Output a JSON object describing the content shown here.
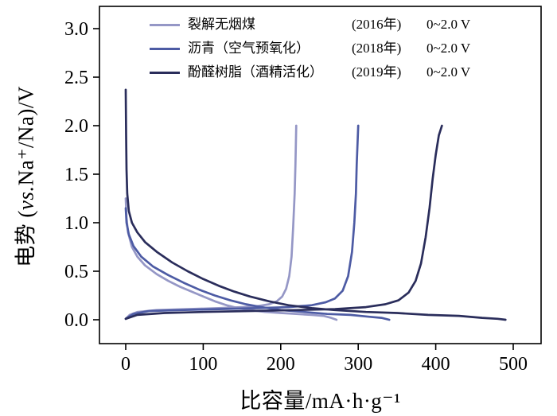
{
  "axes": {
    "x": {
      "label": "比容量/mA·h·g⁻¹",
      "min": 0,
      "max": 500,
      "ticks": [
        0,
        100,
        200,
        300,
        400,
        500
      ],
      "tick_labels": [
        "0",
        "100",
        "200",
        "300",
        "400",
        "500"
      ]
    },
    "y": {
      "label_prefix": "电势 (",
      "label_italic": "vs.",
      "label_suffix": "Na⁺/Na)/V",
      "min": 0,
      "max": 3,
      "ticks": [
        0,
        0.5,
        1,
        1.5,
        2,
        2.5,
        3
      ],
      "tick_labels": [
        "0.0",
        "0.5",
        "1.0",
        "1.5",
        "2.0",
        "2.5",
        "3.0"
      ]
    }
  },
  "chart_data": {
    "type": "line",
    "title": "",
    "xlabel": "比容量/mA·h·g⁻¹",
    "ylabel": "电势 (vs.Na⁺/Na)/V",
    "xlim": [
      0,
      500
    ],
    "ylim": [
      0,
      3.0
    ],
    "grid": false,
    "legend_position": "top-inside",
    "axis_color": "#000000",
    "series": [
      {
        "name": "裂解无烟煤",
        "year": "(2016年)",
        "voltage_range": "0~2.0 V",
        "color": "#9597c6",
        "curves": {
          "discharge": [
            [
              0,
              1.25
            ],
            [
              1,
              1.05
            ],
            [
              3,
              0.9
            ],
            [
              8,
              0.75
            ],
            [
              15,
              0.65
            ],
            [
              25,
              0.56
            ],
            [
              40,
              0.47
            ],
            [
              55,
              0.4
            ],
            [
              70,
              0.34
            ],
            [
              85,
              0.29
            ],
            [
              100,
              0.24
            ],
            [
              115,
              0.19
            ],
            [
              130,
              0.15
            ],
            [
              145,
              0.12
            ],
            [
              160,
              0.1
            ],
            [
              180,
              0.08
            ],
            [
              200,
              0.07
            ],
            [
              220,
              0.06
            ],
            [
              240,
              0.05
            ],
            [
              255,
              0.04
            ],
            [
              265,
              0.02
            ],
            [
              272,
              0.0
            ]
          ],
          "charge": [
            [
              0,
              0.01
            ],
            [
              5,
              0.05
            ],
            [
              15,
              0.08
            ],
            [
              40,
              0.1
            ],
            [
              80,
              0.11
            ],
            [
              120,
              0.12
            ],
            [
              150,
              0.13
            ],
            [
              170,
              0.14
            ],
            [
              185,
              0.16
            ],
            [
              195,
              0.19
            ],
            [
              202,
              0.24
            ],
            [
              207,
              0.32
            ],
            [
              211,
              0.45
            ],
            [
              214,
              0.65
            ],
            [
              216,
              0.95
            ],
            [
              218,
              1.3
            ],
            [
              219,
              1.6
            ],
            [
              220,
              2.0
            ]
          ]
        }
      },
      {
        "name": "沥青（空气预氧化）",
        "year": "(2018年)",
        "voltage_range": "0~2.0 V",
        "color": "#4d5ba4",
        "curves": {
          "discharge": [
            [
              0,
              1.15
            ],
            [
              1,
              1.0
            ],
            [
              4,
              0.88
            ],
            [
              10,
              0.76
            ],
            [
              20,
              0.65
            ],
            [
              35,
              0.55
            ],
            [
              55,
              0.46
            ],
            [
              75,
              0.38
            ],
            [
              95,
              0.31
            ],
            [
              115,
              0.25
            ],
            [
              135,
              0.2
            ],
            [
              155,
              0.16
            ],
            [
              175,
              0.13
            ],
            [
              200,
              0.1
            ],
            [
              230,
              0.08
            ],
            [
              260,
              0.06
            ],
            [
              290,
              0.05
            ],
            [
              315,
              0.03
            ],
            [
              330,
              0.02
            ],
            [
              340,
              0.0
            ]
          ],
          "charge": [
            [
              0,
              0.01
            ],
            [
              10,
              0.06
            ],
            [
              30,
              0.09
            ],
            [
              70,
              0.1
            ],
            [
              120,
              0.11
            ],
            [
              170,
              0.12
            ],
            [
              210,
              0.13
            ],
            [
              240,
              0.15
            ],
            [
              258,
              0.18
            ],
            [
              270,
              0.22
            ],
            [
              280,
              0.3
            ],
            [
              287,
              0.45
            ],
            [
              292,
              0.7
            ],
            [
              295,
              1.0
            ],
            [
              297,
              1.3
            ],
            [
              298,
              1.6
            ],
            [
              300,
              2.0
            ]
          ]
        }
      },
      {
        "name": "酚醛树脂（酒精活化）",
        "year": "(2019年)",
        "voltage_range": "0~2.0 V",
        "color": "#2a2d5b",
        "curves": {
          "discharge": [
            [
              0,
              2.37
            ],
            [
              0.5,
              1.9
            ],
            [
              1,
              1.55
            ],
            [
              2,
              1.3
            ],
            [
              4,
              1.12
            ],
            [
              8,
              1.0
            ],
            [
              15,
              0.9
            ],
            [
              25,
              0.8
            ],
            [
              40,
              0.7
            ],
            [
              60,
              0.59
            ],
            [
              80,
              0.5
            ],
            [
              100,
              0.42
            ],
            [
              120,
              0.35
            ],
            [
              140,
              0.29
            ],
            [
              160,
              0.24
            ],
            [
              185,
              0.19
            ],
            [
              210,
              0.15
            ],
            [
              240,
              0.12
            ],
            [
              270,
              0.1
            ],
            [
              310,
              0.08
            ],
            [
              350,
              0.07
            ],
            [
              390,
              0.05
            ],
            [
              430,
              0.04
            ],
            [
              460,
              0.02
            ],
            [
              480,
              0.01
            ],
            [
              490,
              0.0
            ]
          ],
          "charge": [
            [
              0,
              0.01
            ],
            [
              15,
              0.05
            ],
            [
              50,
              0.07
            ],
            [
              100,
              0.08
            ],
            [
              160,
              0.09
            ],
            [
              220,
              0.1
            ],
            [
              270,
              0.11
            ],
            [
              310,
              0.13
            ],
            [
              335,
              0.16
            ],
            [
              352,
              0.2
            ],
            [
              365,
              0.28
            ],
            [
              374,
              0.4
            ],
            [
              381,
              0.58
            ],
            [
              387,
              0.85
            ],
            [
              392,
              1.15
            ],
            [
              396,
              1.45
            ],
            [
              400,
              1.7
            ],
            [
              404,
              1.9
            ],
            [
              408,
              2.0
            ]
          ]
        }
      }
    ]
  }
}
